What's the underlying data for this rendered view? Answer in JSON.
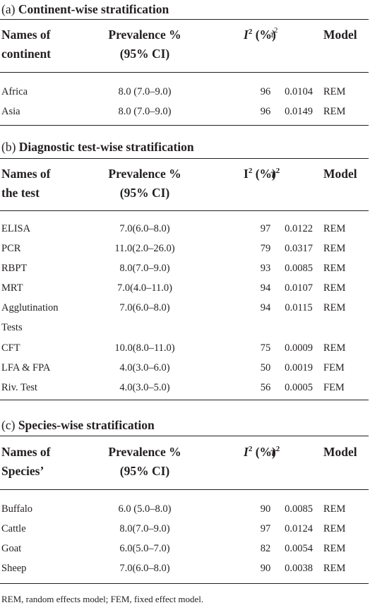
{
  "sections": [
    {
      "letter": "(a)",
      "title": "Continent-wise stratification",
      "headers": {
        "name_line1": "Names of",
        "name_line2": "continent",
        "prev_line1": "Prevalence %",
        "prev_line2": "(95% CI)",
        "i2_symbol": "I",
        "i2_sup": "2",
        "i2_unit": "(%)",
        "tau": "τ",
        "tau_sup": "2",
        "model": "Model"
      },
      "rows": [
        {
          "name": "Africa",
          "prevalence": "8.0 (7.0–9.0)",
          "i2": "96",
          "tau2": "0.0104",
          "model": "REM"
        },
        {
          "name": "Asia",
          "prevalence": "8.0 (7.0–9.0)",
          "i2": "96",
          "tau2": "0.0149",
          "model": "REM"
        }
      ]
    },
    {
      "letter": "(b)",
      "title": "Diagnostic test-wise stratification",
      "headers": {
        "name_line1": "Names of",
        "name_line2": "the test",
        "prev_line1": "Prevalence %",
        "prev_line2": "(95% CI)",
        "i2_symbol": "I",
        "i2_sup": "2",
        "i2_unit": "(%)",
        "tau": "τ",
        "tau_sup": "2",
        "model": "Model"
      },
      "rows": [
        {
          "name": "ELISA",
          "prevalence": "7.0(6.0–8.0)",
          "i2": "97",
          "tau2": "0.0122",
          "model": "REM"
        },
        {
          "name": "PCR",
          "prevalence": "11.0(2.0–26.0)",
          "i2": "79",
          "tau2": "0.0317",
          "model": "REM"
        },
        {
          "name": "RBPT",
          "prevalence": "8.0(7.0–9.0)",
          "i2": "93",
          "tau2": "0.0085",
          "model": "REM"
        },
        {
          "name": "MRT",
          "prevalence": "7.0(4.0–11.0)",
          "i2": "94",
          "tau2": "0.0107",
          "model": "REM"
        },
        {
          "name": "Agglutination",
          "prevalence": "7.0(6.0–8.0)",
          "i2": "94",
          "tau2": "0.0115",
          "model": "REM"
        },
        {
          "name": "Tests",
          "prevalence": "",
          "i2": "",
          "tau2": "",
          "model": ""
        },
        {
          "name": "CFT",
          "prevalence": "10.0(8.0–11.0)",
          "i2": "75",
          "tau2": "0.0009",
          "model": "REM"
        },
        {
          "name": "LFA & FPA",
          "prevalence": "4.0(3.0–6.0)",
          "i2": "50",
          "tau2": "0.0019",
          "model": "FEM"
        },
        {
          "name": "Riv. Test",
          "prevalence": "4.0(3.0–5.0)",
          "i2": "56",
          "tau2": "0.0005",
          "model": "FEM"
        }
      ]
    },
    {
      "letter": "(c)",
      "title": "Species-wise stratification",
      "headers": {
        "name_line1": "Names of",
        "name_line2": "Species’",
        "prev_line1": "Prevalence %",
        "prev_line2": "(95% CI)",
        "i2_symbol": "I",
        "i2_sup": "2",
        "i2_unit": "(%)",
        "tau": "τ",
        "tau_sup": "2",
        "model": "Model"
      },
      "rows": [
        {
          "name": "Buffalo",
          "prevalence": "6.0 (5.0–8.0)",
          "i2": "90",
          "tau2": "0.0085",
          "model": "REM"
        },
        {
          "name": "Cattle",
          "prevalence": "8.0(7.0–9.0)",
          "i2": "97",
          "tau2": "0.0124",
          "model": "REM"
        },
        {
          "name": "Goat",
          "prevalence": "6.0(5.0–7.0)",
          "i2": "82",
          "tau2": "0.0054",
          "model": "REM"
        },
        {
          "name": "Sheep",
          "prevalence": "7.0(6.0–8.0)",
          "i2": "90",
          "tau2": "0.0038",
          "model": "REM"
        }
      ]
    }
  ],
  "footnote": "REM, random effects model; FEM, fixed effect model."
}
